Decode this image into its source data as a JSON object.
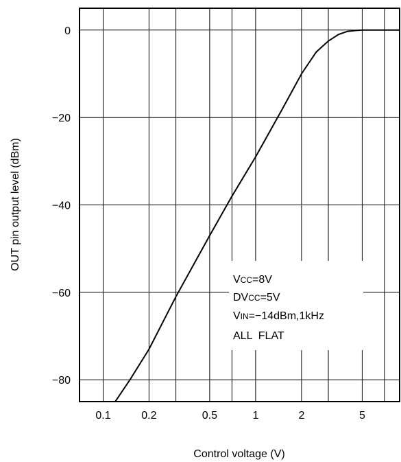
{
  "chart_data": {
    "type": "line",
    "title": "",
    "xlabel": "Control voltage (V)",
    "ylabel": "OUT pin output level (dBm)",
    "x_scale": "log",
    "xlim": [
      0.07,
      8.8
    ],
    "ylim": [
      -85,
      5
    ],
    "x_ticks": [
      0.1,
      0.2,
      0.5,
      1,
      2,
      5
    ],
    "x_tick_labels": [
      "0.1",
      "0.2",
      "0.5",
      "1",
      "2",
      "5"
    ],
    "y_ticks": [
      0,
      -20,
      -40,
      -60,
      -80
    ],
    "y_tick_labels": [
      "0",
      "−20",
      "−40",
      "−60",
      "−80"
    ],
    "x_gridlines": [
      0.1,
      0.2,
      0.3,
      0.5,
      0.7,
      1,
      2,
      3,
      5,
      7
    ],
    "grid": true,
    "annotation_lines": [
      "VCC=8V",
      "DVCC=5V",
      "VIN=−14dBm,1kHz",
      "ALL  FLAT"
    ],
    "series": [
      {
        "x": [
          0.12,
          0.15,
          0.2,
          0.3,
          0.5,
          0.7,
          1.0,
          1.5,
          2.0,
          2.5,
          3.0,
          3.5,
          4.0,
          4.5,
          5.0,
          6.0,
          8.8
        ],
        "y": [
          -85,
          -80,
          -73,
          -61,
          -47,
          -38,
          -29,
          -18,
          -10,
          -5,
          -2.5,
          -1,
          -0.3,
          -0.1,
          0,
          0,
          0
        ]
      }
    ]
  }
}
